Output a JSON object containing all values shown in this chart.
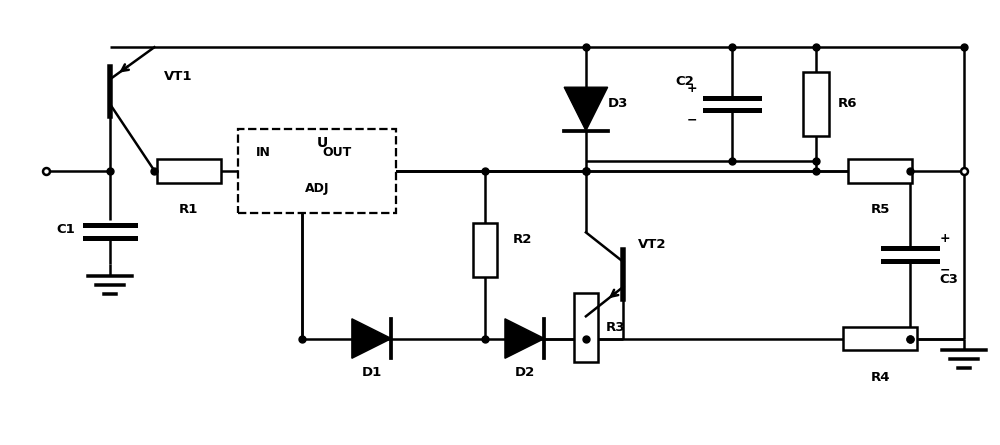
{
  "fig_width": 10.0,
  "fig_height": 4.45,
  "dpi": 100,
  "lw": 1.8,
  "color": "black",
  "background": "white",
  "xlim": [
    0,
    100
  ],
  "ylim": [
    0,
    44.5
  ]
}
